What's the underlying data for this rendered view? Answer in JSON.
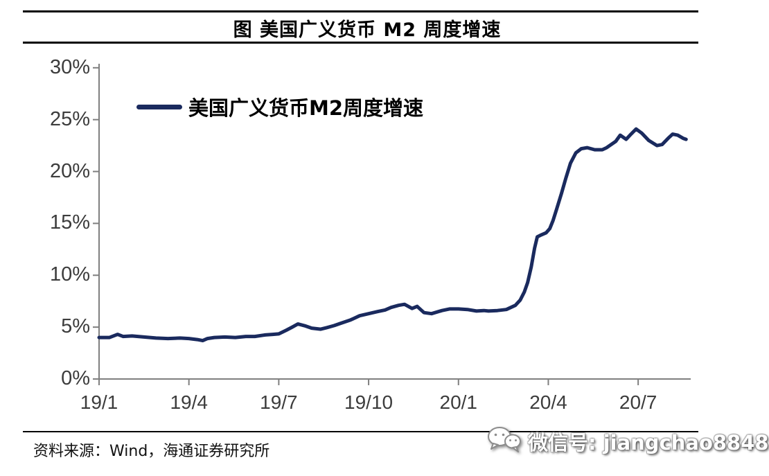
{
  "header": {
    "title": "图  美国广义货币 M2 周度增速"
  },
  "legend": {
    "label": "美国广义货币M2周度增速"
  },
  "footer": {
    "source": "资料来源：Wind，海通证券研究所",
    "wechat": "微信号: jiangchao8848",
    "wechat_icon": "wechat-logo"
  },
  "colors": {
    "line": "#1a2a5e",
    "axis": "#7f7f7f",
    "tick_label": "#3c3c3c",
    "rule": "#000000",
    "watermark_text": "#ffffff"
  },
  "chart_data": {
    "type": "line",
    "title": "图 美国广义货币 M2 周度增速",
    "xlabel": "",
    "ylabel": "",
    "grid": false,
    "legend_position": "inside-top-left",
    "x_axis": {
      "unit": "months since 2019-01",
      "ticks": [
        {
          "m": 0,
          "label": "19/1"
        },
        {
          "m": 3,
          "label": "19/4"
        },
        {
          "m": 6,
          "label": "19/7"
        },
        {
          "m": 9,
          "label": "19/10"
        },
        {
          "m": 12,
          "label": "20/1"
        },
        {
          "m": 15,
          "label": "20/4"
        },
        {
          "m": 18,
          "label": "20/7"
        }
      ]
    },
    "y_axis": {
      "unit": "%",
      "min": 0,
      "max": 30,
      "ticks": [
        {
          "v": 30,
          "label": "30%"
        },
        {
          "v": 25,
          "label": "25%"
        },
        {
          "v": 20,
          "label": "20%"
        },
        {
          "v": 15,
          "label": "15%"
        },
        {
          "v": 10,
          "label": "10%"
        },
        {
          "v": 5,
          "label": "5%"
        },
        {
          "v": 0,
          "label": "0%"
        }
      ]
    },
    "series": [
      {
        "name": "美国广义货币M2周度增速",
        "color": "#1a2a5e",
        "points": [
          [
            0.0,
            4.0
          ],
          [
            0.35,
            4.0
          ],
          [
            0.62,
            4.3
          ],
          [
            0.8,
            4.1
          ],
          [
            1.1,
            4.15
          ],
          [
            1.5,
            4.05
          ],
          [
            1.9,
            3.95
          ],
          [
            2.3,
            3.9
          ],
          [
            2.7,
            3.95
          ],
          [
            3.0,
            3.9
          ],
          [
            3.28,
            3.8
          ],
          [
            3.46,
            3.7
          ],
          [
            3.62,
            3.9
          ],
          [
            3.85,
            4.0
          ],
          [
            4.2,
            4.05
          ],
          [
            4.55,
            4.0
          ],
          [
            4.9,
            4.1
          ],
          [
            5.2,
            4.1
          ],
          [
            5.55,
            4.25
          ],
          [
            5.8,
            4.3
          ],
          [
            6.0,
            4.35
          ],
          [
            6.25,
            4.7
          ],
          [
            6.45,
            5.0
          ],
          [
            6.64,
            5.3
          ],
          [
            6.9,
            5.1
          ],
          [
            7.1,
            4.9
          ],
          [
            7.4,
            4.8
          ],
          [
            7.6,
            4.95
          ],
          [
            7.85,
            5.15
          ],
          [
            8.1,
            5.4
          ],
          [
            8.4,
            5.7
          ],
          [
            8.7,
            6.1
          ],
          [
            9.0,
            6.3
          ],
          [
            9.3,
            6.5
          ],
          [
            9.55,
            6.65
          ],
          [
            9.75,
            6.9
          ],
          [
            10.0,
            7.1
          ],
          [
            10.2,
            7.2
          ],
          [
            10.45,
            6.8
          ],
          [
            10.62,
            7.0
          ],
          [
            10.85,
            6.4
          ],
          [
            11.1,
            6.3
          ],
          [
            11.45,
            6.6
          ],
          [
            11.7,
            6.75
          ],
          [
            12.0,
            6.75
          ],
          [
            12.3,
            6.7
          ],
          [
            12.6,
            6.55
          ],
          [
            12.85,
            6.6
          ],
          [
            13.0,
            6.55
          ],
          [
            13.3,
            6.6
          ],
          [
            13.6,
            6.7
          ],
          [
            13.9,
            7.1
          ],
          [
            14.06,
            7.6
          ],
          [
            14.2,
            8.4
          ],
          [
            14.31,
            9.3
          ],
          [
            14.43,
            10.8
          ],
          [
            14.54,
            12.6
          ],
          [
            14.63,
            13.7
          ],
          [
            14.77,
            13.9
          ],
          [
            14.93,
            14.1
          ],
          [
            15.05,
            14.5
          ],
          [
            15.16,
            15.3
          ],
          [
            15.28,
            16.4
          ],
          [
            15.44,
            17.9
          ],
          [
            15.58,
            19.3
          ],
          [
            15.74,
            20.8
          ],
          [
            15.92,
            21.8
          ],
          [
            16.1,
            22.2
          ],
          [
            16.3,
            22.3
          ],
          [
            16.55,
            22.1
          ],
          [
            16.8,
            22.1
          ],
          [
            16.95,
            22.3
          ],
          [
            17.25,
            22.9
          ],
          [
            17.4,
            23.5
          ],
          [
            17.6,
            23.1
          ],
          [
            17.76,
            23.6
          ],
          [
            17.93,
            24.1
          ],
          [
            18.12,
            23.7
          ],
          [
            18.35,
            23.0
          ],
          [
            18.63,
            22.5
          ],
          [
            18.8,
            22.6
          ],
          [
            19.0,
            23.2
          ],
          [
            19.15,
            23.6
          ],
          [
            19.32,
            23.5
          ],
          [
            19.5,
            23.2
          ],
          [
            19.6,
            23.1
          ]
        ]
      }
    ]
  }
}
